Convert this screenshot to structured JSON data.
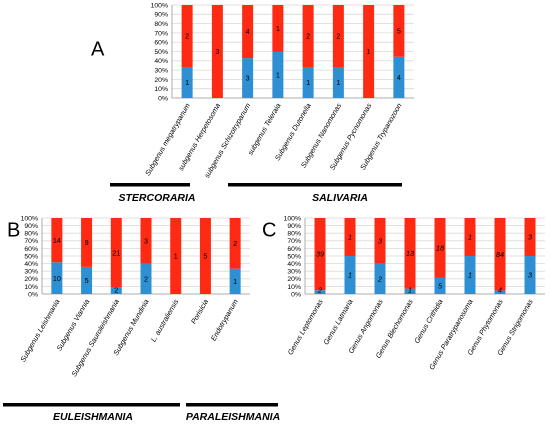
{
  "colors": {
    "top": "#ff2a14",
    "bottom": "#2f8fd3",
    "grid": "#d9d9d9",
    "axis": "#9a9a9a",
    "text": "#000000",
    "group_bar": "#000000"
  },
  "chart_data": [
    {
      "panel": "A",
      "type": "bar",
      "stacked": true,
      "percent": true,
      "ylim": [
        0,
        100
      ],
      "y_ticks": [
        "0%",
        "10%",
        "20%",
        "30%",
        "40%",
        "50%",
        "60%",
        "70%",
        "80%",
        "90%",
        "100%"
      ],
      "categories": [
        "Subgenus  megatrypanum",
        "subgenus Herpetosoma",
        "subgenus Schizotrypanum",
        "subgenus Teleraia",
        "Subgenus Dutonella",
        "Subgenus Nanomonas",
        "Subgenus Pycnomonas",
        "Subgenus Trypanozoon"
      ],
      "series": [
        {
          "role": "bottom",
          "values": [
            33.3,
            0,
            42.9,
            50,
            33.3,
            33.3,
            0,
            44.4
          ],
          "labels": [
            "1",
            "",
            "3",
            "1",
            "1",
            "1",
            "",
            "4"
          ]
        },
        {
          "role": "top",
          "values": [
            66.7,
            100,
            57.1,
            50,
            66.7,
            66.7,
            100,
            55.6
          ],
          "labels": [
            "2",
            "3",
            "4",
            "1",
            "2",
            "2",
            "1",
            "5"
          ]
        }
      ],
      "groups": [
        {
          "label": "STERCORARIA",
          "categories": [
            0,
            1
          ]
        },
        {
          "label": "SALIVARIA",
          "categories": [
            2,
            7
          ]
        }
      ]
    },
    {
      "panel": "B",
      "type": "bar",
      "stacked": true,
      "percent": true,
      "ylim": [
        0,
        100
      ],
      "y_ticks": [
        "0%",
        "10%",
        "20%",
        "30%",
        "40%",
        "50%",
        "60%",
        "70%",
        "80%",
        "90%",
        "100%"
      ],
      "categories": [
        "Subgenus Leishmania",
        "Subgenus Viannia",
        "Subgenus Sauroleishmania",
        "Subgenus Mundinia",
        "L. australiensis",
        "Porisicia",
        "Endotrypanum"
      ],
      "series": [
        {
          "role": "bottom",
          "values": [
            41.7,
            35.7,
            8.7,
            40,
            0,
            0,
            33.3
          ],
          "labels": [
            "10",
            "5",
            "2",
            "2",
            "",
            "",
            "1"
          ]
        },
        {
          "role": "top",
          "values": [
            58.3,
            64.3,
            91.3,
            60,
            100,
            100,
            66.7
          ],
          "labels": [
            "14",
            "9",
            "21",
            "3",
            "1",
            "5",
            "2"
          ]
        }
      ],
      "groups": [
        {
          "label": "EULEISHMANIA",
          "categories": [
            0,
            4
          ]
        },
        {
          "label": "PARALEISHMANIA",
          "categories": [
            5,
            6
          ]
        }
      ]
    },
    {
      "panel": "C",
      "type": "bar",
      "stacked": true,
      "percent": true,
      "ylim": [
        0,
        100
      ],
      "y_ticks": [
        "0%",
        "10%",
        "20%",
        "30%",
        "40%",
        "50%",
        "60%",
        "70%",
        "80%",
        "90%",
        "100%"
      ],
      "categories": [
        "Genus Leptomonas",
        "Genus Latmaria",
        "Genus Angomonas",
        "Genus Blechomonas",
        "Genus Crithidia",
        "Genus Paratrypanosoma",
        "Genus Phytomonas",
        "Genus Strigomonas"
      ],
      "series": [
        {
          "role": "bottom",
          "values": [
            4.9,
            50,
            40,
            7.1,
            21.7,
            50,
            4.5,
            50
          ],
          "labels": [
            "2",
            "1",
            "2",
            "1",
            "5",
            "1",
            "4",
            "3"
          ]
        },
        {
          "role": "top",
          "values": [
            95.1,
            50,
            60,
            92.9,
            78.3,
            50,
            95.5,
            50
          ],
          "labels": [
            "39",
            "1",
            "3",
            "13",
            "18",
            "1",
            "84",
            "3"
          ]
        }
      ],
      "groups": []
    }
  ]
}
